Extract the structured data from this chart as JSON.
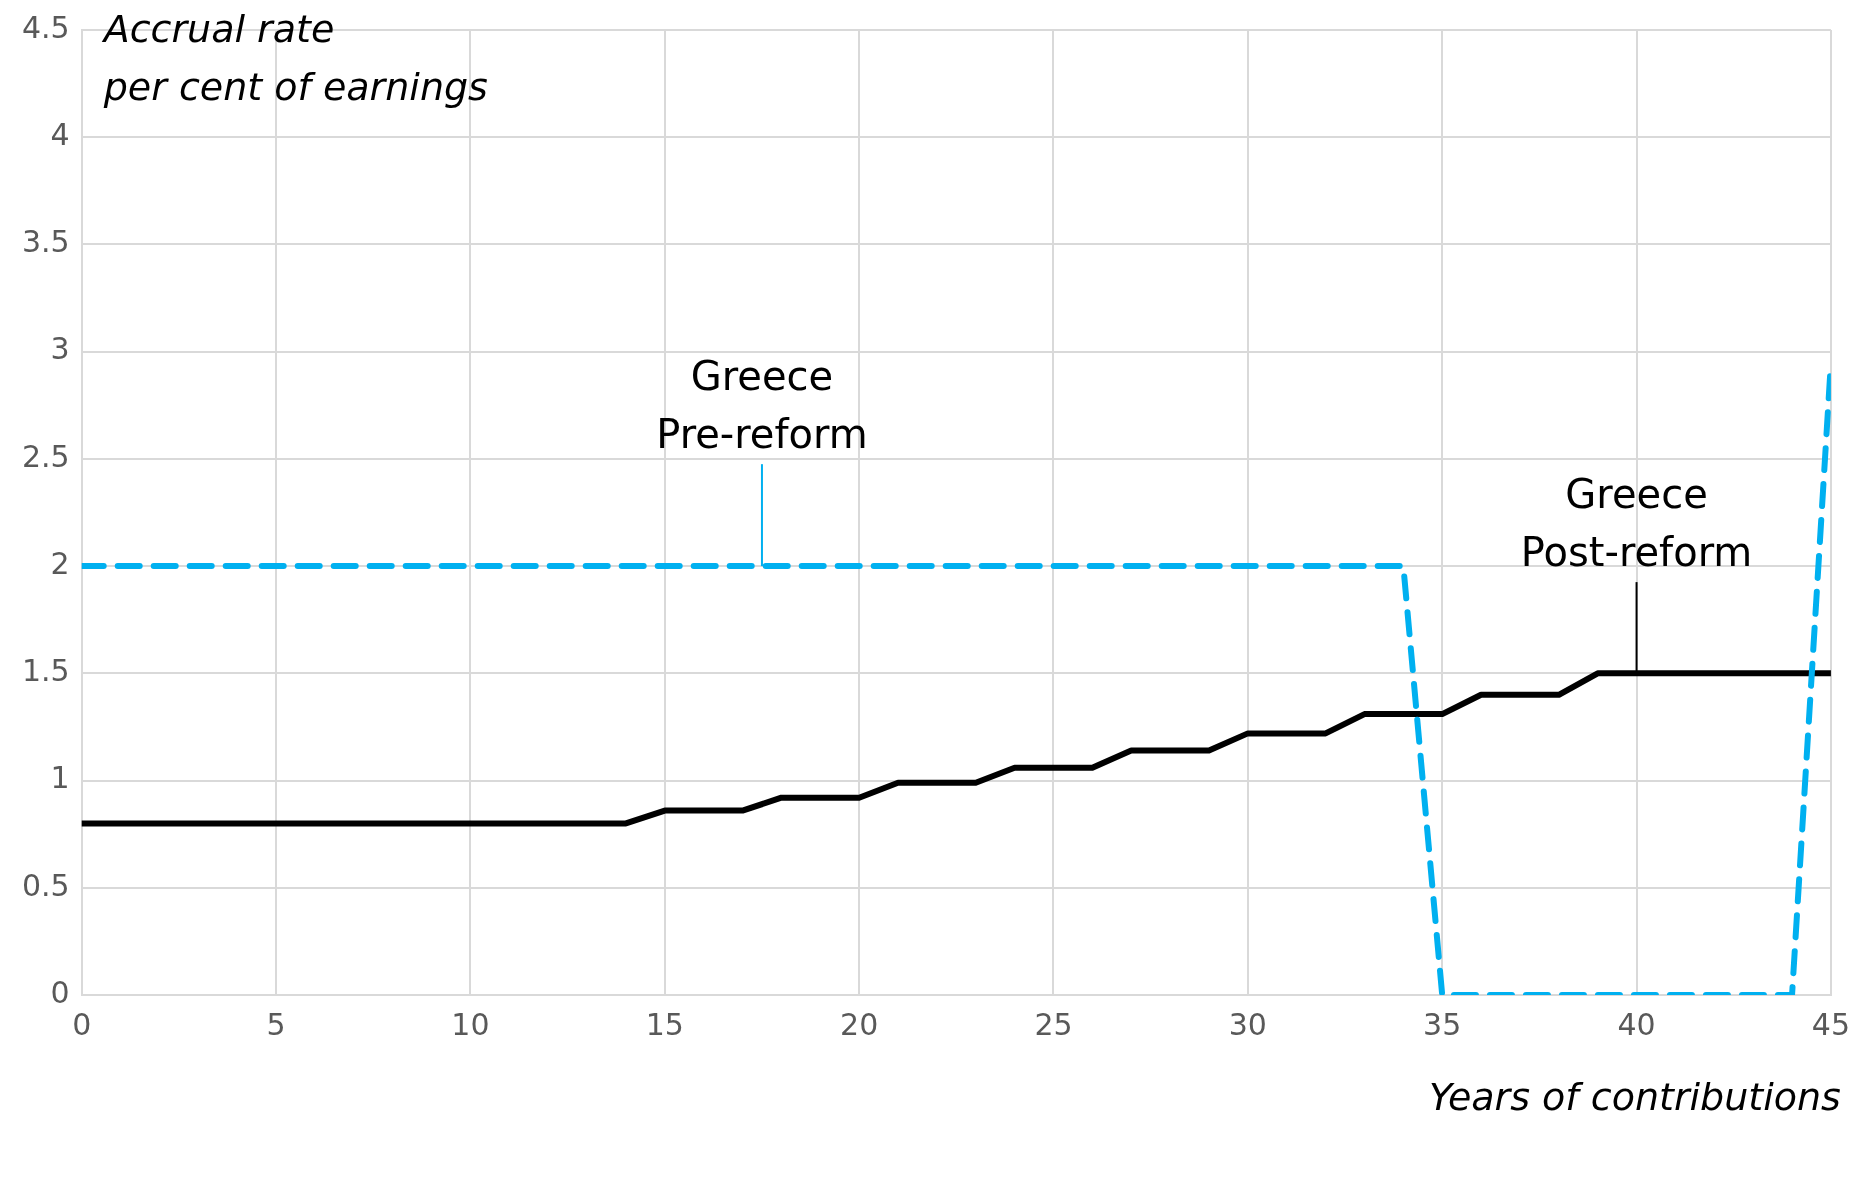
{
  "chart_data": {
    "type": "line",
    "xlabel": "Years of contributions",
    "ylabel": "Accrual rate\nper cent of earnings",
    "xlim": [
      0,
      45
    ],
    "xticks": [
      0,
      5,
      10,
      15,
      20,
      25,
      30,
      35,
      40,
      45
    ],
    "ylim": [
      0,
      4.5
    ],
    "yticks": [
      0,
      0.5,
      1,
      1.5,
      2,
      2.5,
      3,
      3.5,
      4,
      4.5
    ],
    "grid": true,
    "legend": false,
    "marker": "none",
    "series": [
      {
        "name": "Greece\nPre-reform",
        "color": "#00b0f0",
        "line_style": "dashed",
        "x": [
          0,
          34,
          35,
          44,
          45
        ],
        "values": [
          2,
          2,
          0,
          0,
          2.95
        ]
      },
      {
        "name": "Greece\nPost-reform",
        "color": "#000000",
        "line_style": "solid",
        "x": [
          0,
          14,
          15,
          17,
          18,
          20,
          21,
          23,
          24,
          26,
          27,
          29,
          30,
          32,
          33,
          35,
          36,
          38,
          39,
          45
        ],
        "values": [
          0.8,
          0.8,
          0.86,
          0.86,
          0.92,
          0.92,
          0.99,
          0.99,
          1.06,
          1.06,
          1.14,
          1.14,
          1.22,
          1.22,
          1.31,
          1.31,
          1.4,
          1.4,
          1.5,
          1.5
        ]
      }
    ]
  }
}
